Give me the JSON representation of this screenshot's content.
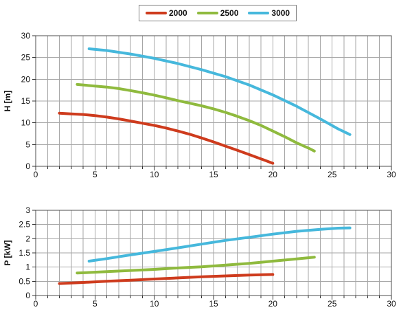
{
  "figure": {
    "background": "#ffffff",
    "grid_color": "#a6a6a6",
    "border_color": "#4d4d4d",
    "tick_color": "#333333",
    "text_color": "#111111"
  },
  "legend": {
    "position": "top-center",
    "items": [
      {
        "label": "2000",
        "color": "#ce3b1d"
      },
      {
        "label": "2500",
        "color": "#8fba3e"
      },
      {
        "label": "3000",
        "color": "#46b8dc"
      }
    ]
  },
  "chart_data": [
    {
      "type": "line",
      "title": "",
      "xlabel": "",
      "ylabel": "H [m]",
      "xlim": [
        0,
        30
      ],
      "ylim": [
        0,
        30
      ],
      "x_tick_labels": [
        0,
        5,
        10,
        15,
        20,
        25,
        30
      ],
      "x_minor_step": 1,
      "y_ticks": [
        0,
        5,
        10,
        15,
        20,
        25,
        30
      ],
      "grid": true,
      "legend_position": "top-center-shared",
      "series": [
        {
          "name": "2000",
          "color": "#ce3b1d",
          "points": [
            [
              2,
              12.2
            ],
            [
              3,
              12.05
            ],
            [
              4,
              11.9
            ],
            [
              5,
              11.65
            ],
            [
              6,
              11.3
            ],
            [
              7,
              10.9
            ],
            [
              8,
              10.4
            ],
            [
              9,
              9.9
            ],
            [
              10,
              9.4
            ],
            [
              11,
              8.8
            ],
            [
              12,
              8.1
            ],
            [
              13,
              7.35
            ],
            [
              14,
              6.5
            ],
            [
              15,
              5.6
            ],
            [
              16,
              4.65
            ],
            [
              17,
              3.7
            ],
            [
              18,
              2.7
            ],
            [
              19,
              1.7
            ],
            [
              20,
              0.7
            ]
          ]
        },
        {
          "name": "2500",
          "color": "#8fba3e",
          "points": [
            [
              3.5,
              18.8
            ],
            [
              5,
              18.45
            ],
            [
              6,
              18.2
            ],
            [
              7,
              17.85
            ],
            [
              8,
              17.4
            ],
            [
              9,
              16.9
            ],
            [
              10,
              16.35
            ],
            [
              11,
              15.75
            ],
            [
              12,
              15.1
            ],
            [
              13,
              14.5
            ],
            [
              14,
              13.9
            ],
            [
              15,
              13.2
            ],
            [
              16,
              12.4
            ],
            [
              17,
              11.5
            ],
            [
              18,
              10.5
            ],
            [
              19,
              9.4
            ],
            [
              20,
              8.1
            ],
            [
              21,
              6.8
            ],
            [
              22,
              5.4
            ],
            [
              23,
              4.2
            ],
            [
              23.5,
              3.5
            ]
          ]
        },
        {
          "name": "3000",
          "color": "#46b8dc",
          "points": [
            [
              4.5,
              27
            ],
            [
              6,
              26.6
            ],
            [
              8,
              25.8
            ],
            [
              10,
              24.8
            ],
            [
              12,
              23.6
            ],
            [
              14,
              22.2
            ],
            [
              16,
              20.6
            ],
            [
              18,
              18.7
            ],
            [
              20,
              16.4
            ],
            [
              22,
              13.8
            ],
            [
              24,
              10.9
            ],
            [
              25.5,
              8.6
            ],
            [
              26.5,
              7.3
            ]
          ]
        }
      ]
    },
    {
      "type": "line",
      "title": "",
      "xlabel": "",
      "ylabel": "P [kW]",
      "xlim": [
        0,
        30
      ],
      "ylim": [
        0,
        3
      ],
      "x_tick_labels": [
        0,
        5,
        10,
        15,
        20,
        25,
        30
      ],
      "x_minor_step": 1,
      "y_ticks": [
        0,
        0.5,
        1,
        1.5,
        2,
        2.5,
        3
      ],
      "grid": true,
      "legend_position": "top-center-shared",
      "series": [
        {
          "name": "2000",
          "color": "#ce3b1d",
          "points": [
            [
              2,
              0.42
            ],
            [
              4,
              0.46
            ],
            [
              6,
              0.5
            ],
            [
              8,
              0.54
            ],
            [
              10,
              0.58
            ],
            [
              12,
              0.62
            ],
            [
              14,
              0.66
            ],
            [
              16,
              0.69
            ],
            [
              18,
              0.72
            ],
            [
              20,
              0.74
            ]
          ]
        },
        {
          "name": "2500",
          "color": "#8fba3e",
          "points": [
            [
              3.5,
              0.79
            ],
            [
              6,
              0.84
            ],
            [
              8,
              0.88
            ],
            [
              10,
              0.92
            ],
            [
              12,
              0.97
            ],
            [
              14,
              1.01
            ],
            [
              16,
              1.07
            ],
            [
              18,
              1.13
            ],
            [
              20,
              1.21
            ],
            [
              22,
              1.29
            ],
            [
              23.5,
              1.35
            ]
          ]
        },
        {
          "name": "3000",
          "color": "#46b8dc",
          "points": [
            [
              4.5,
              1.21
            ],
            [
              6,
              1.3
            ],
            [
              8,
              1.43
            ],
            [
              10,
              1.55
            ],
            [
              12,
              1.68
            ],
            [
              14,
              1.81
            ],
            [
              16,
              1.94
            ],
            [
              18,
              2.05
            ],
            [
              20,
              2.16
            ],
            [
              22,
              2.26
            ],
            [
              24,
              2.33
            ],
            [
              25.5,
              2.37
            ],
            [
              26.5,
              2.38
            ]
          ]
        }
      ]
    }
  ]
}
